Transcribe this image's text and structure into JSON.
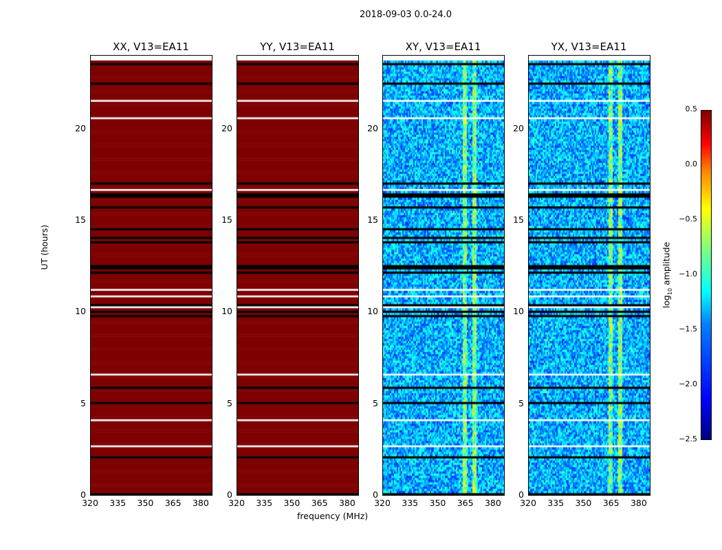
{
  "chart_data": {
    "type": "heatmap",
    "suptitle": "2018-09-03 0.0-24.0",
    "xlabel": "frequency (MHz)",
    "ylabel": "UT (hours)",
    "xlim": [
      320,
      386
    ],
    "ylim": [
      0,
      24
    ],
    "xticks": [
      "320",
      "335",
      "350",
      "365",
      "380"
    ],
    "yticks": [
      "0",
      "5",
      "10",
      "15",
      "20"
    ],
    "panels": [
      {
        "title": "XX, V13=EA11",
        "typical_log10_amplitude": 0.5
      },
      {
        "title": "YY, V13=EA11",
        "typical_log10_amplitude": 0.5
      },
      {
        "title": "XY, V13=EA11",
        "typical_log10_amplitude": -1.6,
        "rfi_channels_mhz": [
          364,
          369
        ]
      },
      {
        "title": "YX, V13=EA11",
        "typical_log10_amplitude": -1.6,
        "rfi_channels_mhz": [
          364,
          369
        ]
      }
    ],
    "flagged_ut_hours": [
      0.9,
      4.9,
      10.9,
      14.0,
      11.6,
      9.6,
      17.4
    ],
    "colorbar": {
      "label_prefix": "log",
      "label_sub": "10",
      "label_suffix": " amplitude",
      "ticks": [
        "0.5",
        "0.0",
        "−0.5",
        "−1.0",
        "−1.5",
        "−2.0",
        "−2.5"
      ],
      "range": [
        -2.5,
        0.5
      ],
      "colormap": "jet"
    }
  }
}
